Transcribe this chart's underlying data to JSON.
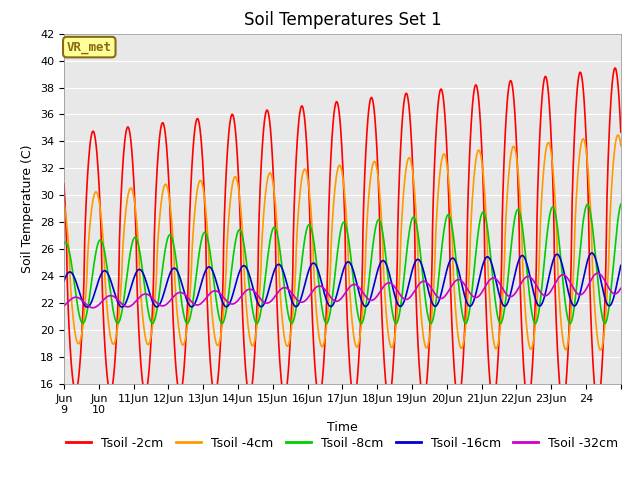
{
  "title": "Soil Temperatures Set 1",
  "xlabel": "Time",
  "ylabel": "Soil Temperature (C)",
  "ylim": [
    16,
    42
  ],
  "yticks": [
    16,
    18,
    20,
    22,
    24,
    26,
    28,
    30,
    32,
    34,
    36,
    38,
    40,
    42
  ],
  "xlim": [
    0,
    16
  ],
  "xtick_positions": [
    0,
    1,
    2,
    3,
    4,
    5,
    6,
    7,
    8,
    9,
    10,
    11,
    12,
    13,
    14,
    15,
    16
  ],
  "xtick_labels": [
    "Jun 9",
    "Jun\n10",
    "11Jun",
    "12Jun",
    "13Jun",
    "14Jun",
    "15Jun",
    "16Jun",
    "17Jun",
    "18Jun",
    "19Jun",
    "20Jun",
    "21Jun",
    "22Jun",
    "23Jun",
    "24",
    ""
  ],
  "series_colors": [
    "#ff0000",
    "#ff9900",
    "#00cc00",
    "#0000cc",
    "#cc00cc"
  ],
  "series_labels": [
    "Tsoil -2cm",
    "Tsoil -4cm",
    "Tsoil -8cm",
    "Tsoil -16cm",
    "Tsoil -32cm"
  ],
  "fig_bg_color": "#ffffff",
  "plot_bg_color": "#e8e8e8",
  "grid_color": "#ffffff",
  "annotation_text": "VR_met",
  "annotation_bg": "#ffff99",
  "annotation_border": "#8b6914",
  "title_fontsize": 12,
  "axis_fontsize": 9,
  "tick_fontsize": 8,
  "legend_fontsize": 9,
  "linewidth": 1.2
}
